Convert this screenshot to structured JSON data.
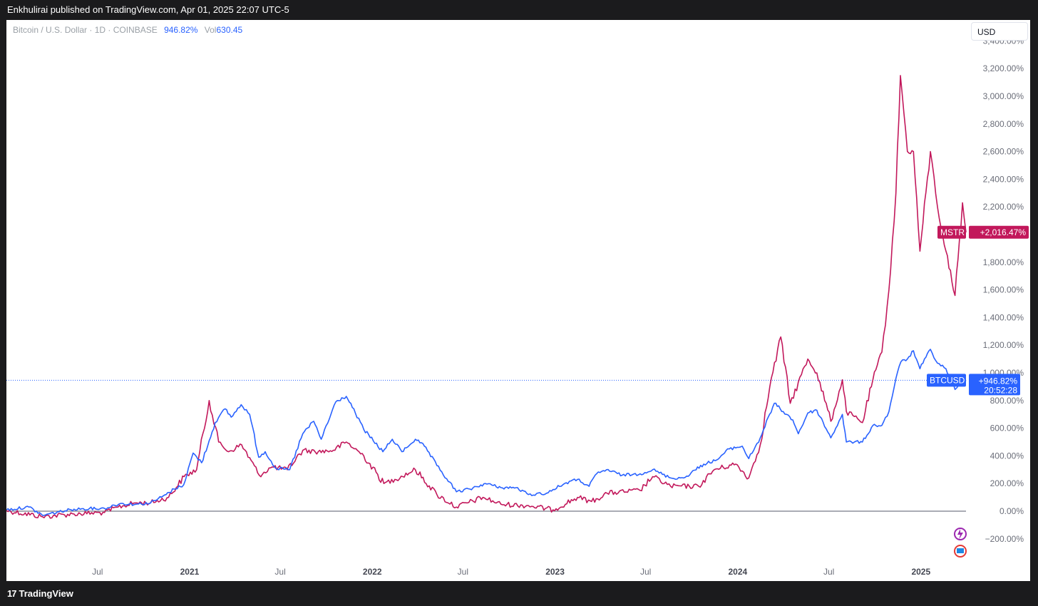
{
  "header": {
    "published": "Enkhulirai published on TradingView.com, Apr 01, 2025 22:07 UTC-5"
  },
  "legend": {
    "symbol": "Bitcoin / U.S. Dollar · 1D · COINBASE",
    "value": "946.82%",
    "vol_label": "Vol",
    "vol_value": "630.45"
  },
  "currency": {
    "label": "USD"
  },
  "footer": {
    "logo_text": "TradingView",
    "logo_mark": "17"
  },
  "colors": {
    "btc": "#2962ff",
    "mstr": "#c2185b",
    "baseline": "#787b86",
    "axis_text": "#6a6d78"
  },
  "chart_data": {
    "type": "line",
    "ylabel": "",
    "y_unit": "%",
    "ylim": [
      -300,
      3400
    ],
    "yticks": [
      -200,
      0,
      200,
      400,
      600,
      800,
      1000,
      1200,
      1400,
      1600,
      1800,
      2000,
      2200,
      2400,
      2600,
      2800,
      3000,
      3200,
      3400
    ],
    "ytick_labels": [
      "−200.00%",
      "0.00%",
      "200.00%",
      "400.00%",
      "600.00%",
      "800.00%",
      "1,000.00%",
      "1,200.00%",
      "1,400.00%",
      "1,600.00%",
      "1,800.00%",
      "2,000.00%",
      "2,200.00%",
      "2,400.00%",
      "2,600.00%",
      "2,800.00%",
      "3,000.00%",
      "3,200.00%",
      "3,400.00%"
    ],
    "xlim": [
      "2020-01-01",
      "2025-04-01"
    ],
    "xticks": [
      {
        "date": "2020-07-01",
        "label": "Jul",
        "bold": false
      },
      {
        "date": "2021-01-01",
        "label": "2021",
        "bold": true
      },
      {
        "date": "2021-07-01",
        "label": "Jul",
        "bold": false
      },
      {
        "date": "2022-01-01",
        "label": "2022",
        "bold": true
      },
      {
        "date": "2022-07-01",
        "label": "Jul",
        "bold": false
      },
      {
        "date": "2023-01-01",
        "label": "2023",
        "bold": true
      },
      {
        "date": "2023-07-01",
        "label": "Jul",
        "bold": false
      },
      {
        "date": "2024-01-01",
        "label": "2024",
        "bold": true
      },
      {
        "date": "2024-07-01",
        "label": "Jul",
        "bold": false
      },
      {
        "date": "2025-01-01",
        "label": "2025",
        "bold": true
      }
    ],
    "grid": false,
    "baseline": 0,
    "series": [
      {
        "name": "BTCUSD",
        "color": "#2962ff",
        "last_value_label": "+946.82%",
        "countdown": "20:52:28",
        "current_value": 946.82,
        "points": [
          [
            "2020-01-01",
            10
          ],
          [
            "2020-02-15",
            30
          ],
          [
            "2020-03-13",
            -30
          ],
          [
            "2020-04-15",
            -5
          ],
          [
            "2020-05-15",
            15
          ],
          [
            "2020-06-15",
            20
          ],
          [
            "2020-07-15",
            20
          ],
          [
            "2020-08-15",
            55
          ],
          [
            "2020-09-15",
            50
          ],
          [
            "2020-10-15",
            60
          ],
          [
            "2020-11-15",
            120
          ],
          [
            "2020-12-01",
            160
          ],
          [
            "2020-12-20",
            190
          ],
          [
            "2021-01-08",
            420
          ],
          [
            "2021-01-25",
            350
          ],
          [
            "2021-02-21",
            640
          ],
          [
            "2021-03-13",
            740
          ],
          [
            "2021-03-25",
            680
          ],
          [
            "2021-04-14",
            770
          ],
          [
            "2021-05-01",
            700
          ],
          [
            "2021-05-19",
            390
          ],
          [
            "2021-06-01",
            430
          ],
          [
            "2021-06-22",
            310
          ],
          [
            "2021-07-20",
            300
          ],
          [
            "2021-08-15",
            560
          ],
          [
            "2021-09-06",
            650
          ],
          [
            "2021-09-21",
            520
          ],
          [
            "2021-10-20",
            790
          ],
          [
            "2021-11-10",
            830
          ],
          [
            "2021-11-28",
            710
          ],
          [
            "2021-12-15",
            590
          ],
          [
            "2022-01-22",
            430
          ],
          [
            "2022-02-10",
            520
          ],
          [
            "2022-03-01",
            430
          ],
          [
            "2022-03-28",
            520
          ],
          [
            "2022-04-15",
            470
          ],
          [
            "2022-05-10",
            330
          ],
          [
            "2022-06-18",
            140
          ],
          [
            "2022-07-15",
            160
          ],
          [
            "2022-08-15",
            200
          ],
          [
            "2022-09-15",
            170
          ],
          [
            "2022-10-15",
            170
          ],
          [
            "2022-11-09",
            120
          ],
          [
            "2022-12-15",
            130
          ],
          [
            "2023-01-20",
            200
          ],
          [
            "2023-02-15",
            230
          ],
          [
            "2023-03-10",
            180
          ],
          [
            "2023-03-25",
            270
          ],
          [
            "2023-04-14",
            300
          ],
          [
            "2023-05-15",
            260
          ],
          [
            "2023-06-20",
            270
          ],
          [
            "2023-07-15",
            300
          ],
          [
            "2023-08-20",
            240
          ],
          [
            "2023-09-15",
            240
          ],
          [
            "2023-10-25",
            340
          ],
          [
            "2023-11-20",
            370
          ],
          [
            "2023-12-15",
            450
          ],
          [
            "2024-01-10",
            470
          ],
          [
            "2024-01-23",
            380
          ],
          [
            "2024-02-15",
            530
          ],
          [
            "2024-03-14",
            780
          ],
          [
            "2024-04-01",
            720
          ],
          [
            "2024-04-20",
            660
          ],
          [
            "2024-05-01",
            560
          ],
          [
            "2024-05-20",
            710
          ],
          [
            "2024-06-07",
            730
          ],
          [
            "2024-07-05",
            530
          ],
          [
            "2024-07-28",
            700
          ],
          [
            "2024-08-05",
            500
          ],
          [
            "2024-09-06",
            500
          ],
          [
            "2024-09-27",
            620
          ],
          [
            "2024-10-15",
            620
          ],
          [
            "2024-10-29",
            720
          ],
          [
            "2024-11-12",
            960
          ],
          [
            "2024-11-22",
            1080
          ],
          [
            "2024-12-05",
            1100
          ],
          [
            "2024-12-17",
            1160
          ],
          [
            "2024-12-30",
            1030
          ],
          [
            "2025-01-20",
            1170
          ],
          [
            "2025-02-03",
            1070
          ],
          [
            "2025-02-20",
            1030
          ],
          [
            "2025-03-10",
            880
          ],
          [
            "2025-04-01",
            946.82
          ]
        ]
      },
      {
        "name": "MSTR",
        "color": "#c2185b",
        "last_value_label": "+2,016.47%",
        "current_value": 2016.47,
        "points": [
          [
            "2020-01-01",
            5
          ],
          [
            "2020-03-13",
            -40
          ],
          [
            "2020-05-15",
            -20
          ],
          [
            "2020-07-15",
            -10
          ],
          [
            "2020-08-11",
            30
          ],
          [
            "2020-09-15",
            60
          ],
          [
            "2020-10-15",
            60
          ],
          [
            "2020-11-20",
            100
          ],
          [
            "2020-12-21",
            250
          ],
          [
            "2021-01-15",
            300
          ],
          [
            "2021-02-09",
            800
          ],
          [
            "2021-02-28",
            500
          ],
          [
            "2021-03-20",
            430
          ],
          [
            "2021-04-15",
            480
          ],
          [
            "2021-05-20",
            260
          ],
          [
            "2021-06-15",
            320
          ],
          [
            "2021-07-15",
            300
          ],
          [
            "2021-08-15",
            440
          ],
          [
            "2021-09-15",
            430
          ],
          [
            "2021-10-15",
            440
          ],
          [
            "2021-11-10",
            500
          ],
          [
            "2021-12-15",
            400
          ],
          [
            "2022-01-24",
            200
          ],
          [
            "2022-02-15",
            230
          ],
          [
            "2022-03-28",
            300
          ],
          [
            "2022-05-10",
            120
          ],
          [
            "2022-06-18",
            30
          ],
          [
            "2022-08-10",
            100
          ],
          [
            "2022-09-15",
            50
          ],
          [
            "2022-11-09",
            40
          ],
          [
            "2022-12-28",
            10
          ],
          [
            "2023-02-15",
            100
          ],
          [
            "2023-03-15",
            70
          ],
          [
            "2023-04-15",
            130
          ],
          [
            "2023-06-20",
            150
          ],
          [
            "2023-07-15",
            250
          ],
          [
            "2023-08-20",
            180
          ],
          [
            "2023-10-15",
            180
          ],
          [
            "2023-11-15",
            300
          ],
          [
            "2023-12-28",
            340
          ],
          [
            "2024-01-23",
            240
          ],
          [
            "2024-02-15",
            480
          ],
          [
            "2024-03-05",
            900
          ],
          [
            "2024-03-27",
            1260
          ],
          [
            "2024-04-15",
            780
          ],
          [
            "2024-05-20",
            1100
          ],
          [
            "2024-06-07",
            1000
          ],
          [
            "2024-07-05",
            650
          ],
          [
            "2024-07-28",
            950
          ],
          [
            "2024-08-05",
            720
          ],
          [
            "2024-09-06",
            640
          ],
          [
            "2024-09-27",
            950
          ],
          [
            "2024-10-15",
            1150
          ],
          [
            "2024-10-29",
            1600
          ],
          [
            "2024-11-12",
            2300
          ],
          [
            "2024-11-21",
            3150
          ],
          [
            "2024-12-05",
            2600
          ],
          [
            "2024-12-17",
            2600
          ],
          [
            "2024-12-30",
            1880
          ],
          [
            "2025-01-20",
            2600
          ],
          [
            "2025-02-03",
            2200
          ],
          [
            "2025-02-20",
            1880
          ],
          [
            "2025-03-10",
            1560
          ],
          [
            "2025-03-25",
            2230
          ],
          [
            "2025-04-01",
            2016.47
          ]
        ]
      }
    ]
  }
}
